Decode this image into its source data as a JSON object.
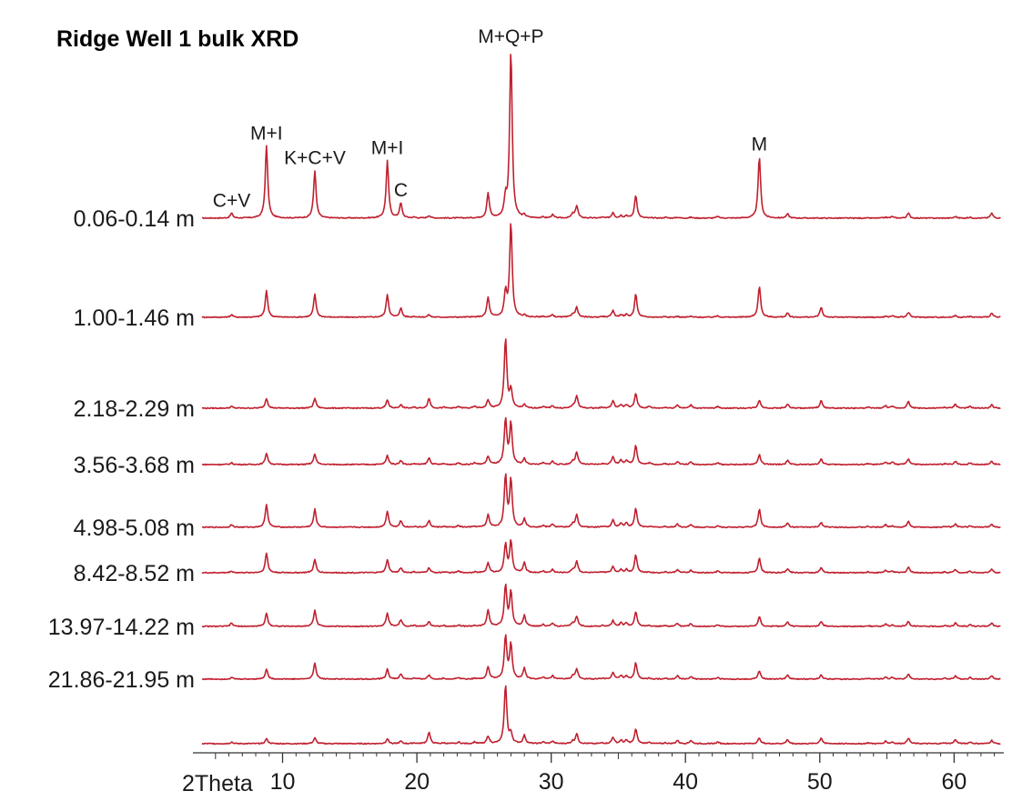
{
  "chart_data": {
    "type": "line",
    "title": "Ridge Well 1 bulk XRD",
    "xlabel": "2Theta",
    "xlim": [
      4,
      63.5
    ],
    "x_ticks": [
      10,
      20,
      30,
      40,
      50,
      60
    ],
    "line_color": "#c0202f",
    "peak_positions": [
      6.2,
      8.8,
      12.4,
      17.8,
      18.8,
      19.8,
      20.9,
      22.0,
      23.1,
      24.3,
      25.3,
      26.6,
      27.0,
      28.0,
      29.4,
      30.1,
      31.6,
      31.9,
      33.8,
      34.6,
      35.2,
      35.6,
      36.3,
      37.3,
      38.5,
      39.4,
      40.4,
      42.4,
      45.5,
      47.6,
      50.1,
      53.6,
      54.9,
      55.4,
      56.6,
      59.3,
      60.1,
      61.2,
      62.8
    ],
    "peak_annotations": [
      {
        "label": "C+V",
        "x": 6.2
      },
      {
        "label": "M+I",
        "x": 8.8
      },
      {
        "label": "K+C+V",
        "x": 12.4
      },
      {
        "label": "M+I",
        "x": 17.8
      },
      {
        "label": "C",
        "x": 18.8
      },
      {
        "label": "M+Q+P",
        "x": 27.0
      },
      {
        "label": "M",
        "x": 45.5
      }
    ],
    "series": [
      {
        "name": "0.06-0.14 m",
        "intensities": [
          6,
          88,
          58,
          70,
          18,
          1,
          3,
          0,
          0,
          0,
          30,
          22,
          205,
          3,
          1,
          4,
          5,
          15,
          1,
          7,
          3,
          3,
          28,
          0,
          1,
          1,
          1,
          2,
          75,
          5,
          0,
          0,
          1,
          2,
          6,
          0,
          2,
          1,
          6
        ]
      },
      {
        "name": "1.00-1.46 m",
        "intensities": [
          3,
          32,
          28,
          28,
          11,
          1,
          3,
          0,
          0,
          0,
          24,
          30,
          115,
          2,
          1,
          3,
          4,
          12,
          1,
          8,
          3,
          3,
          28,
          0,
          1,
          1,
          1,
          2,
          38,
          5,
          12,
          0,
          1,
          2,
          6,
          0,
          2,
          1,
          5
        ]
      },
      {
        "name": "2.18-2.29 m",
        "intensities": [
          2,
          12,
          12,
          10,
          4,
          1,
          12,
          1,
          2,
          2,
          10,
          85,
          22,
          4,
          2,
          3,
          3,
          15,
          1,
          9,
          4,
          4,
          18,
          2,
          1,
          4,
          4,
          2,
          10,
          5,
          9,
          1,
          3,
          2,
          8,
          1,
          5,
          2,
          4
        ]
      },
      {
        "name": "3.56-3.68 m",
        "intensities": [
          2,
          14,
          13,
          11,
          5,
          1,
          8,
          1,
          2,
          2,
          10,
          55,
          50,
          7,
          2,
          4,
          4,
          15,
          1,
          10,
          5,
          5,
          24,
          2,
          1,
          4,
          3,
          2,
          12,
          5,
          7,
          1,
          3,
          3,
          7,
          1,
          4,
          2,
          4
        ]
      },
      {
        "name": "4.98-5.08 m",
        "intensities": [
          3,
          28,
          22,
          20,
          8,
          1,
          8,
          1,
          2,
          1,
          15,
          62,
          58,
          10,
          2,
          4,
          4,
          15,
          1,
          9,
          5,
          5,
          23,
          1,
          1,
          4,
          3,
          2,
          22,
          5,
          6,
          1,
          3,
          2,
          7,
          1,
          4,
          2,
          4
        ]
      },
      {
        "name": "8.42-8.52 m",
        "intensities": [
          2,
          24,
          16,
          16,
          6,
          1,
          6,
          1,
          2,
          1,
          12,
          35,
          38,
          12,
          2,
          4,
          4,
          14,
          1,
          8,
          4,
          4,
          22,
          1,
          1,
          4,
          3,
          2,
          18,
          5,
          6,
          1,
          3,
          2,
          7,
          1,
          4,
          2,
          4
        ]
      },
      {
        "name": "13.97-14.22 m",
        "intensities": [
          4,
          16,
          20,
          16,
          8,
          1,
          6,
          1,
          2,
          1,
          20,
          50,
          42,
          13,
          2,
          4,
          4,
          12,
          1,
          7,
          4,
          4,
          18,
          1,
          1,
          4,
          3,
          2,
          12,
          5,
          6,
          1,
          3,
          2,
          6,
          1,
          4,
          2,
          4
        ]
      },
      {
        "name": "21.86-21.95 m",
        "intensities": [
          2,
          12,
          20,
          12,
          6,
          1,
          5,
          1,
          2,
          1,
          15,
          52,
          42,
          13,
          2,
          4,
          4,
          12,
          1,
          8,
          4,
          4,
          20,
          1,
          1,
          4,
          3,
          2,
          10,
          5,
          5,
          1,
          3,
          2,
          6,
          1,
          4,
          2,
          4
        ]
      },
      {
        "name": "",
        "intensities": [
          2,
          6,
          7,
          6,
          3,
          1,
          14,
          1,
          2,
          2,
          9,
          72,
          12,
          10,
          2,
          3,
          3,
          12,
          1,
          8,
          4,
          4,
          18,
          2,
          1,
          4,
          4,
          2,
          7,
          5,
          7,
          1,
          3,
          2,
          7,
          1,
          5,
          2,
          4
        ]
      }
    ]
  }
}
